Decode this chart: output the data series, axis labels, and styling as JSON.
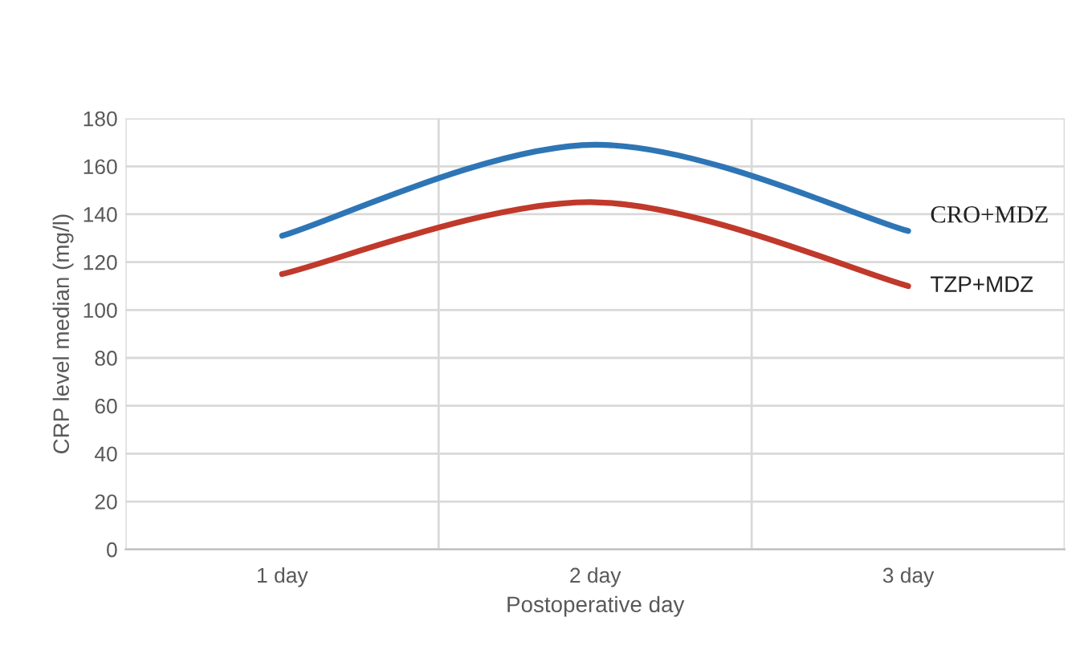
{
  "chart_data": {
    "type": "line",
    "xlabel": "Postoperative day",
    "ylabel": "CRP level median (mg/l)",
    "categories": [
      "1 day",
      "2 day",
      "3 day"
    ],
    "series": [
      {
        "name": "CRO+MDZ",
        "color": "#2e75b6",
        "values": [
          131,
          169,
          133
        ]
      },
      {
        "name": "TZP+MDZ",
        "color": "#c0392b",
        "values": [
          115,
          145,
          110
        ]
      }
    ],
    "ylim": [
      0,
      180
    ],
    "yticks": [
      0,
      20,
      40,
      60,
      80,
      100,
      120,
      140,
      160,
      180
    ],
    "grid": true,
    "legend": false,
    "marker": "none",
    "line_style": "solid"
  }
}
